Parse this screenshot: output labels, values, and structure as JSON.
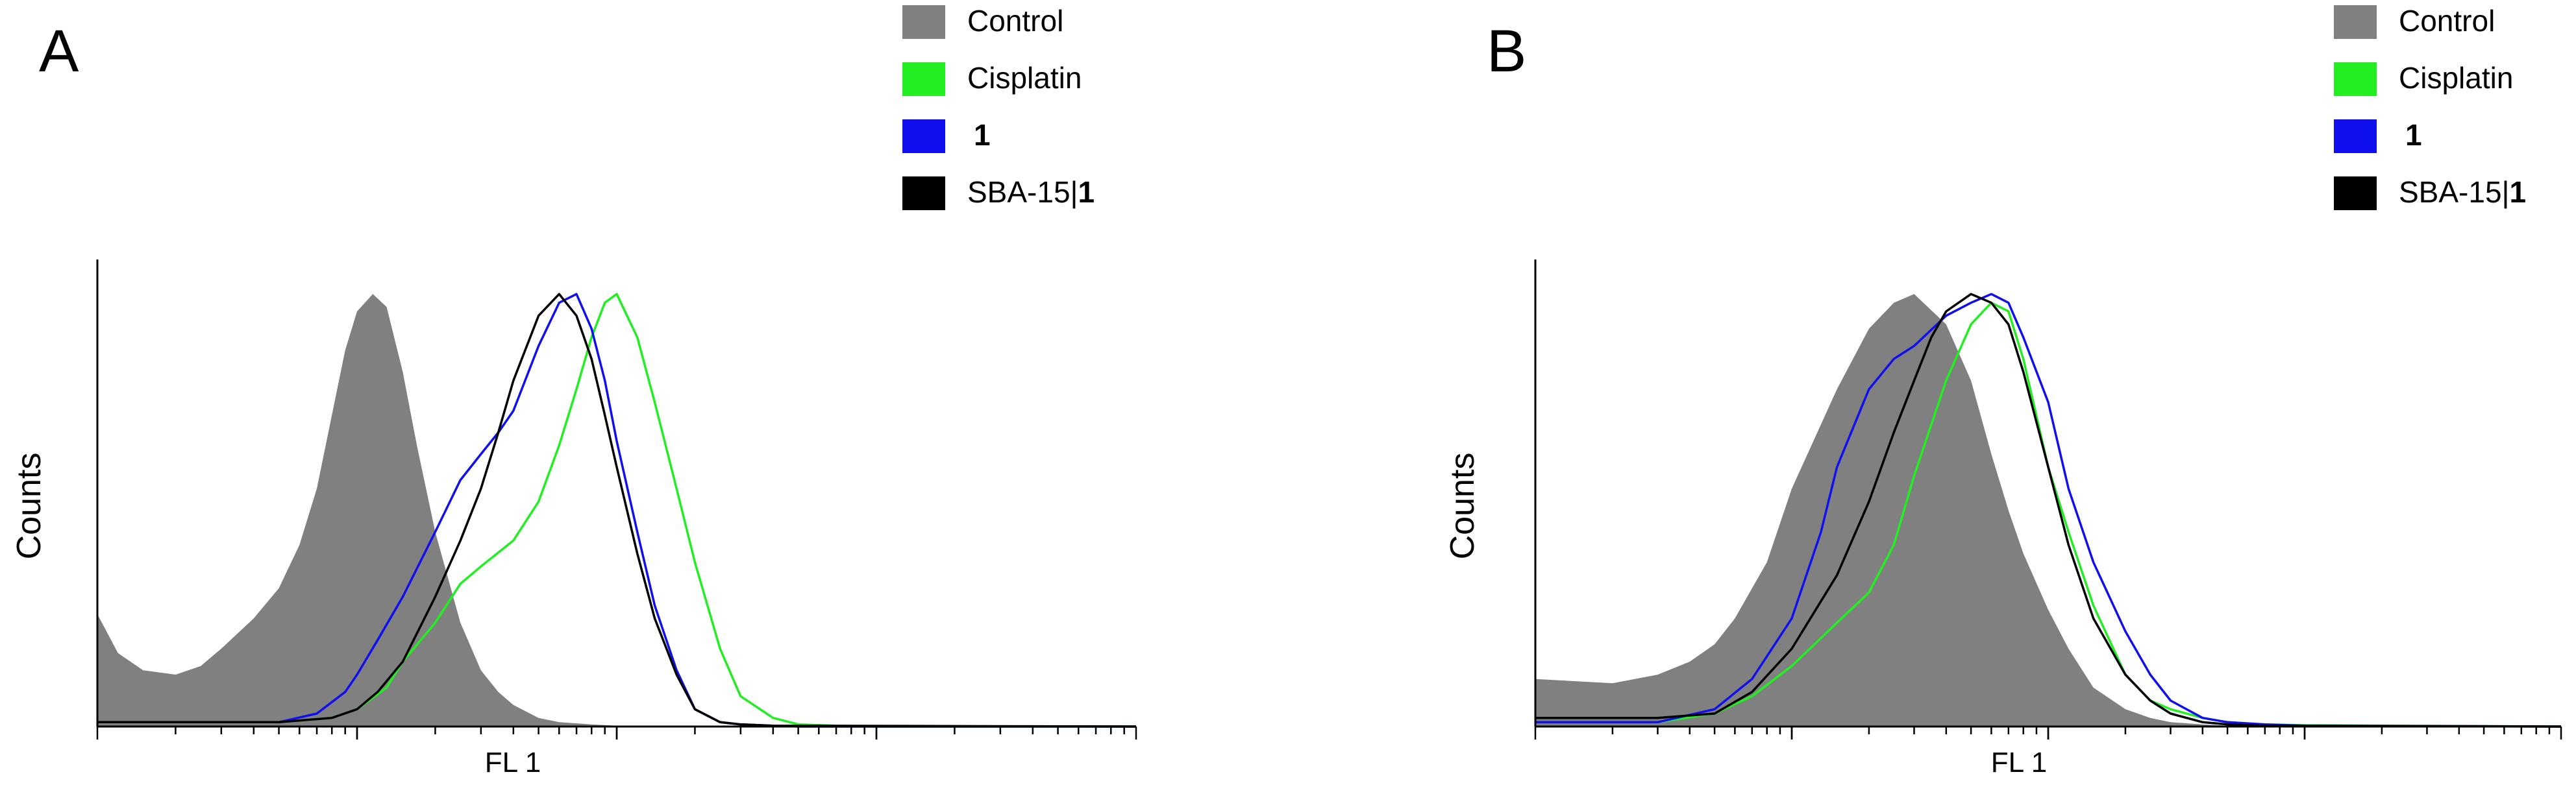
{
  "chart_data": [
    {
      "type": "area",
      "panel_label": "A",
      "xlabel": "FL 1",
      "ylabel": "Counts",
      "x_scale": "log",
      "xlim": [
        0.01,
        100
      ],
      "ylim": [
        0,
        1.05
      ],
      "legend_position": "top-right",
      "legend": [
        {
          "label": "Control",
          "suffix": "",
          "color": "#808080",
          "kind": "fill"
        },
        {
          "label": "Cisplatin",
          "suffix": "",
          "color": "#22ee22",
          "kind": "line"
        },
        {
          "label": "",
          "suffix": "1",
          "color": "#1010ee",
          "kind": "line"
        },
        {
          "label": "SBA-15|",
          "suffix": "1",
          "color": "#000000",
          "kind": "line"
        }
      ],
      "series": [
        {
          "name": "Control",
          "color": "#808080",
          "kind": "fill",
          "x": [
            0.01,
            0.012,
            0.015,
            0.02,
            0.025,
            0.03,
            0.04,
            0.05,
            0.06,
            0.07,
            0.08,
            0.09,
            0.1,
            0.115,
            0.13,
            0.15,
            0.17,
            0.2,
            0.25,
            0.3,
            0.35,
            0.4,
            0.5,
            0.6,
            0.8,
            1,
            2,
            5,
            100
          ],
          "y": [
            0.26,
            0.17,
            0.13,
            0.12,
            0.14,
            0.18,
            0.25,
            0.32,
            0.42,
            0.55,
            0.72,
            0.87,
            0.96,
            1.0,
            0.97,
            0.82,
            0.65,
            0.45,
            0.24,
            0.13,
            0.08,
            0.05,
            0.02,
            0.01,
            0.005,
            0.002,
            0.001,
            0.0,
            0.0
          ]
        },
        {
          "name": "Cisplatin",
          "color": "#22ee22",
          "kind": "line",
          "x": [
            0.01,
            0.05,
            0.08,
            0.1,
            0.13,
            0.15,
            0.2,
            0.25,
            0.3,
            0.4,
            0.5,
            0.6,
            0.7,
            0.8,
            0.9,
            1.0,
            1.2,
            1.4,
            1.7,
            2,
            2.5,
            3,
            4,
            5,
            7,
            10,
            100
          ],
          "y": [
            0.01,
            0.01,
            0.02,
            0.04,
            0.09,
            0.15,
            0.24,
            0.33,
            0.37,
            0.43,
            0.52,
            0.65,
            0.78,
            0.9,
            0.98,
            1.0,
            0.9,
            0.75,
            0.55,
            0.38,
            0.18,
            0.07,
            0.02,
            0.005,
            0.002,
            0.0,
            0.0
          ]
        },
        {
          "name": "1",
          "color": "#1010ee",
          "kind": "line",
          "x": [
            0.01,
            0.05,
            0.07,
            0.09,
            0.1,
            0.12,
            0.15,
            0.2,
            0.25,
            0.3,
            0.35,
            0.4,
            0.5,
            0.6,
            0.7,
            0.8,
            0.9,
            1.0,
            1.2,
            1.4,
            1.7,
            2,
            2.5,
            3,
            4,
            5,
            100
          ],
          "y": [
            0.01,
            0.01,
            0.03,
            0.08,
            0.12,
            0.2,
            0.3,
            0.45,
            0.57,
            0.63,
            0.68,
            0.73,
            0.88,
            0.98,
            1.0,
            0.92,
            0.8,
            0.66,
            0.45,
            0.28,
            0.13,
            0.04,
            0.01,
            0.005,
            0.002,
            0.0,
            0.0
          ]
        },
        {
          "name": "SBA-15|1",
          "color": "#000000",
          "kind": "line",
          "x": [
            0.01,
            0.05,
            0.08,
            0.1,
            0.12,
            0.15,
            0.2,
            0.25,
            0.3,
            0.35,
            0.4,
            0.5,
            0.6,
            0.7,
            0.8,
            0.9,
            1.0,
            1.2,
            1.4,
            1.7,
            2,
            2.5,
            3,
            4,
            100
          ],
          "y": [
            0.01,
            0.01,
            0.02,
            0.04,
            0.08,
            0.15,
            0.3,
            0.43,
            0.55,
            0.68,
            0.8,
            0.95,
            1.0,
            0.95,
            0.85,
            0.72,
            0.6,
            0.4,
            0.25,
            0.12,
            0.04,
            0.01,
            0.005,
            0.002,
            0.0
          ]
        }
      ]
    },
    {
      "type": "area",
      "panel_label": "B",
      "xlabel": "FL 1",
      "ylabel": "Counts",
      "x_scale": "log",
      "xlim": [
        0.01,
        100
      ],
      "ylim": [
        0,
        1.05
      ],
      "legend_position": "top-right",
      "legend": [
        {
          "label": "Control",
          "suffix": "",
          "color": "#808080",
          "kind": "fill"
        },
        {
          "label": "Cisplatin",
          "suffix": "",
          "color": "#22ee22",
          "kind": "line"
        },
        {
          "label": "",
          "suffix": "1",
          "color": "#1010ee",
          "kind": "line"
        },
        {
          "label": "SBA-15|",
          "suffix": "1",
          "color": "#000000",
          "kind": "line"
        }
      ],
      "series": [
        {
          "name": "Control",
          "color": "#808080",
          "kind": "fill",
          "x": [
            0.01,
            0.02,
            0.03,
            0.04,
            0.05,
            0.06,
            0.08,
            0.1,
            0.15,
            0.2,
            0.25,
            0.3,
            0.4,
            0.5,
            0.6,
            0.7,
            0.8,
            1.0,
            1.2,
            1.5,
            2,
            2.5,
            3,
            4,
            5,
            100
          ],
          "y": [
            0.11,
            0.1,
            0.12,
            0.15,
            0.19,
            0.25,
            0.38,
            0.55,
            0.78,
            0.92,
            0.98,
            1.0,
            0.93,
            0.8,
            0.63,
            0.5,
            0.4,
            0.27,
            0.18,
            0.09,
            0.04,
            0.02,
            0.01,
            0.005,
            0.002,
            0.0
          ]
        },
        {
          "name": "Cisplatin",
          "color": "#22ee22",
          "kind": "line",
          "x": [
            0.01,
            0.03,
            0.05,
            0.07,
            0.1,
            0.15,
            0.2,
            0.25,
            0.3,
            0.4,
            0.5,
            0.6,
            0.7,
            0.8,
            1.0,
            1.2,
            1.5,
            2,
            2.5,
            3,
            4,
            5,
            7,
            10,
            20,
            100
          ],
          "y": [
            0.01,
            0.01,
            0.03,
            0.07,
            0.14,
            0.24,
            0.31,
            0.42,
            0.58,
            0.8,
            0.93,
            0.98,
            0.96,
            0.85,
            0.6,
            0.45,
            0.28,
            0.12,
            0.06,
            0.04,
            0.02,
            0.01,
            0.005,
            0.003,
            0.002,
            0.0
          ]
        },
        {
          "name": "1",
          "color": "#1010ee",
          "kind": "line",
          "x": [
            0.01,
            0.03,
            0.05,
            0.07,
            0.1,
            0.13,
            0.15,
            0.2,
            0.25,
            0.3,
            0.4,
            0.5,
            0.6,
            0.7,
            0.8,
            1.0,
            1.2,
            1.5,
            2,
            2.5,
            3,
            4,
            5,
            7,
            10,
            100
          ],
          "y": [
            0.01,
            0.01,
            0.04,
            0.11,
            0.25,
            0.45,
            0.6,
            0.78,
            0.85,
            0.88,
            0.95,
            0.98,
            1.0,
            0.98,
            0.9,
            0.75,
            0.55,
            0.38,
            0.22,
            0.12,
            0.06,
            0.02,
            0.01,
            0.005,
            0.002,
            0.0
          ]
        },
        {
          "name": "SBA-15|1",
          "color": "#000000",
          "kind": "line",
          "x": [
            0.01,
            0.03,
            0.05,
            0.07,
            0.1,
            0.15,
            0.2,
            0.25,
            0.3,
            0.35,
            0.4,
            0.5,
            0.6,
            0.7,
            0.8,
            1.0,
            1.2,
            1.5,
            2,
            2.5,
            3,
            4,
            5,
            7,
            100
          ],
          "y": [
            0.02,
            0.02,
            0.03,
            0.08,
            0.18,
            0.35,
            0.52,
            0.68,
            0.8,
            0.9,
            0.96,
            1.0,
            0.98,
            0.93,
            0.82,
            0.6,
            0.42,
            0.25,
            0.12,
            0.06,
            0.03,
            0.01,
            0.005,
            0.002,
            0.0
          ]
        }
      ]
    }
  ]
}
